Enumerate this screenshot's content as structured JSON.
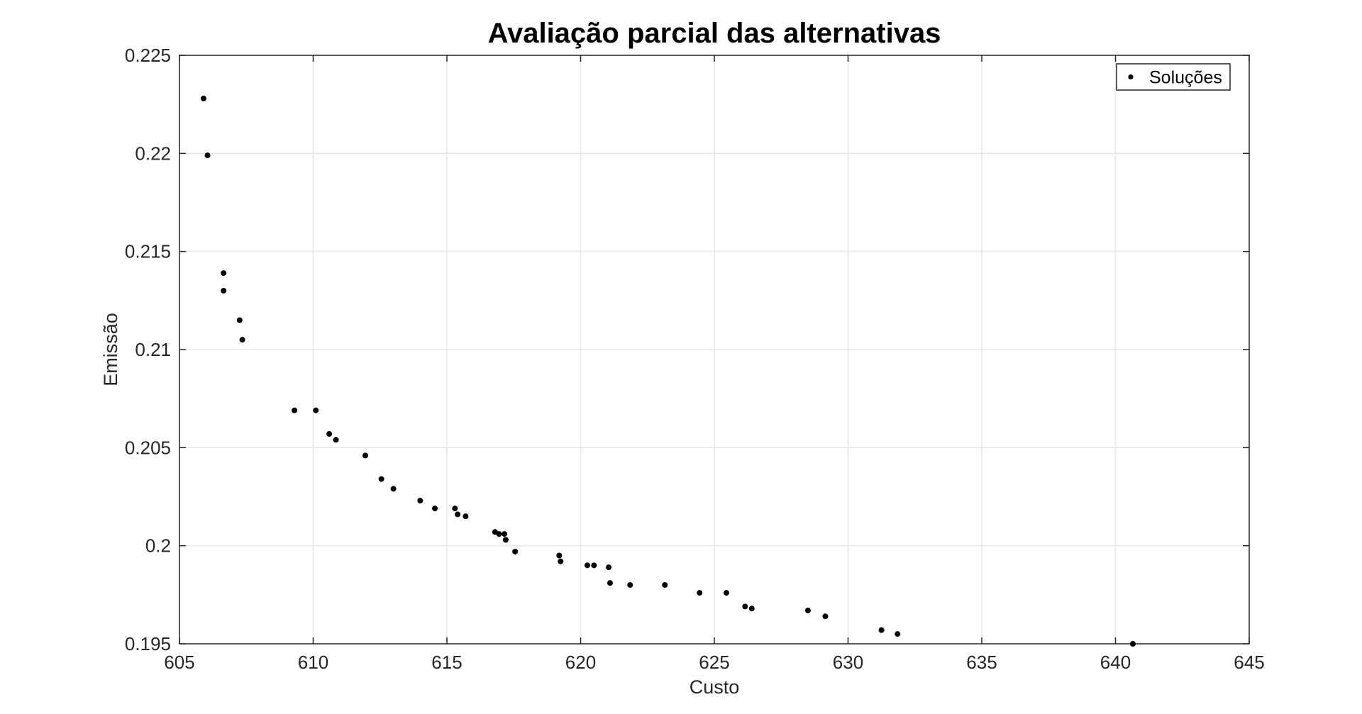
{
  "chart_data": {
    "type": "scatter",
    "title": "Avaliação parcial das alternativas",
    "xlabel": "Custo",
    "ylabel": "Emissão",
    "xlim": [
      605,
      645
    ],
    "ylim": [
      0.195,
      0.225
    ],
    "xticks": [
      "605",
      "610",
      "615",
      "620",
      "625",
      "630",
      "635",
      "640",
      "645"
    ],
    "yticks": [
      "0.195",
      "0.2",
      "0.205",
      "0.21",
      "0.215",
      "0.22",
      "0.225"
    ],
    "grid": true,
    "legend_position": "top-right",
    "marker_color": "#000000",
    "series": [
      {
        "name": "Soluções",
        "points": [
          [
            605.9,
            0.2228
          ],
          [
            606.05,
            0.2199
          ],
          [
            606.65,
            0.2139
          ],
          [
            606.65,
            0.213
          ],
          [
            607.25,
            0.2115
          ],
          [
            607.35,
            0.2105
          ],
          [
            609.3,
            0.2069
          ],
          [
            610.1,
            0.2069
          ],
          [
            610.6,
            0.2057
          ],
          [
            610.85,
            0.2054
          ],
          [
            611.95,
            0.2046
          ],
          [
            612.55,
            0.2034
          ],
          [
            613.0,
            0.2029
          ],
          [
            614.0,
            0.2023
          ],
          [
            614.55,
            0.2019
          ],
          [
            615.3,
            0.2019
          ],
          [
            615.4,
            0.2016
          ],
          [
            615.7,
            0.2015
          ],
          [
            616.8,
            0.2007
          ],
          [
            616.95,
            0.2006
          ],
          [
            617.15,
            0.2006
          ],
          [
            617.2,
            0.2003
          ],
          [
            617.55,
            0.1997
          ],
          [
            619.2,
            0.1995
          ],
          [
            619.25,
            0.1992
          ],
          [
            620.25,
            0.199
          ],
          [
            620.5,
            0.199
          ],
          [
            621.05,
            0.1989
          ],
          [
            621.1,
            0.1981
          ],
          [
            621.85,
            0.198
          ],
          [
            623.15,
            0.198
          ],
          [
            624.45,
            0.1976
          ],
          [
            625.45,
            0.1976
          ],
          [
            626.15,
            0.1969
          ],
          [
            626.4,
            0.1968
          ],
          [
            628.5,
            0.1967
          ],
          [
            629.15,
            0.1964
          ],
          [
            631.25,
            0.1957
          ],
          [
            631.85,
            0.1955
          ],
          [
            640.65,
            0.195
          ]
        ]
      }
    ]
  }
}
